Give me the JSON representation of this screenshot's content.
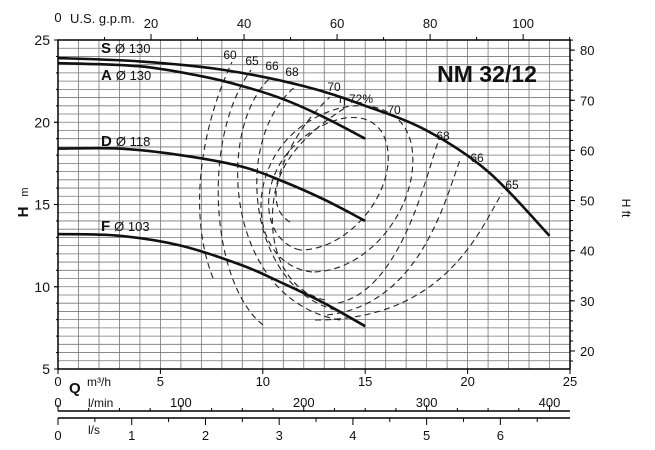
{
  "chart_data": {
    "type": "line",
    "title": "NM 32/12",
    "y_left": {
      "letter": "H",
      "unit": "m",
      "range": [
        5,
        25
      ],
      "ticks": [
        5,
        10,
        15,
        20,
        25
      ]
    },
    "y_right": {
      "unit": "H ft",
      "ticks": [
        20,
        30,
        40,
        50,
        60,
        70,
        80
      ]
    },
    "x_primary": {
      "letter": "Q",
      "unit": "m³/h",
      "range": [
        0,
        25
      ],
      "ticks": [
        0,
        5,
        10,
        15,
        20,
        25
      ]
    },
    "x_top": {
      "unit": "U.S. g.p.m.",
      "ticks": [
        0,
        20,
        40,
        60,
        80,
        100
      ]
    },
    "x_lmin": {
      "unit": "l/min",
      "ticks": [
        0,
        100,
        200,
        300,
        400
      ]
    },
    "x_ls": {
      "unit": "l/s",
      "ticks": [
        0,
        1,
        2,
        3,
        4,
        5,
        6
      ]
    },
    "series": [
      {
        "name": "S",
        "label": "Ø 130",
        "points": [
          [
            0,
            23.9
          ],
          [
            4,
            23.7
          ],
          [
            8,
            23.2
          ],
          [
            12,
            22.2
          ],
          [
            15,
            21.0
          ],
          [
            18,
            19.5
          ],
          [
            21,
            17.0
          ],
          [
            24,
            13.1
          ]
        ]
      },
      {
        "name": "A",
        "label": "Ø 130",
        "points": [
          [
            0,
            23.6
          ],
          [
            4,
            23.4
          ],
          [
            7,
            22.8
          ],
          [
            9,
            22.2
          ],
          [
            11,
            21.4
          ],
          [
            13,
            20.3
          ],
          [
            15,
            19.0
          ]
        ]
      },
      {
        "name": "D",
        "label": "Ø 118",
        "points": [
          [
            0,
            18.4
          ],
          [
            3,
            18.4
          ],
          [
            6,
            18.0
          ],
          [
            9,
            17.3
          ],
          [
            11,
            16.4
          ],
          [
            13,
            15.3
          ],
          [
            15,
            14.0
          ]
        ]
      },
      {
        "name": "F",
        "label": "Ø 103",
        "points": [
          [
            0,
            13.2
          ],
          [
            3,
            13.1
          ],
          [
            6,
            12.5
          ],
          [
            9,
            11.3
          ],
          [
            11,
            10.2
          ],
          [
            13,
            9.0
          ],
          [
            15,
            7.6
          ]
        ]
      }
    ],
    "efficiency_labels": [
      "60",
      "65",
      "66",
      "68",
      "70",
      "η 72%",
      "70",
      "68",
      "66",
      "65"
    ]
  }
}
